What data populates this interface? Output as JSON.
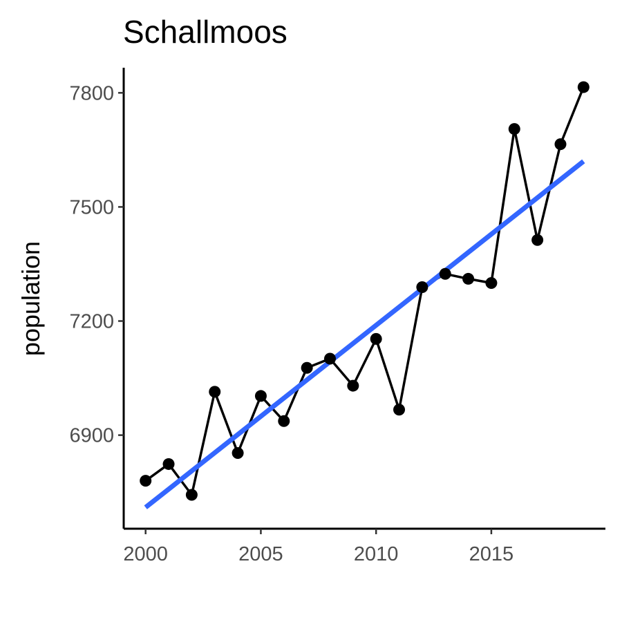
{
  "chart_data": {
    "type": "line",
    "title": "Schallmoos",
    "xlabel": "",
    "ylabel": "population",
    "x": [
      2000,
      2001,
      2002,
      2003,
      2004,
      2005,
      2006,
      2007,
      2008,
      2009,
      2010,
      2011,
      2012,
      2013,
      2014,
      2015,
      2016,
      2017,
      2018,
      2019
    ],
    "series": [
      {
        "values": [
          6780,
          6824,
          6743,
          7014,
          6853,
          7003,
          6937,
          7077,
          7101,
          7030,
          7153,
          6967,
          7289,
          7324,
          7311,
          7300,
          7705,
          7413,
          7665,
          7815
        ]
      }
    ],
    "trend": {
      "method": "linear",
      "x": [
        2000,
        2019
      ],
      "y": [
        6710,
        7620
      ]
    },
    "xticks": [
      2000,
      2005,
      2010,
      2015
    ],
    "yticks": [
      6900,
      7200,
      7500,
      7800
    ],
    "xlim": [
      1999.05,
      2019.95
    ],
    "ylim": [
      6654,
      7866
    ],
    "grid": false,
    "legend": "none",
    "colors": {
      "series": "#000000",
      "trend": "#3366ff",
      "tick_labels": "#4d4d4d"
    }
  }
}
